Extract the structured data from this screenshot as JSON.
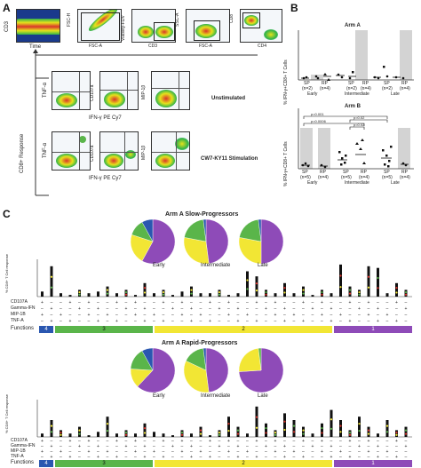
{
  "panels": {
    "a": "A",
    "b": "B",
    "c": "C"
  },
  "panelA": {
    "row1": {
      "p1": {
        "ylabel": "CD3",
        "xlabel": "Time"
      },
      "p2": {
        "ylabel": "FSC-H",
        "xlabel": "FSC-A"
      },
      "p3": {
        "ylabel": "Viability-FDV",
        "xlabel": "CD3"
      },
      "p4": {
        "ylabel": "SSC-A",
        "xlabel": "FSC-A"
      },
      "p5": {
        "ylabel": "CD8",
        "xlabel": "CD4"
      }
    },
    "response_label": "CD8+ Response",
    "unstim": {
      "label": "Unstimulated",
      "y1": "TNF-α",
      "y2": "CD107a",
      "y3": "MIP-1β",
      "xlabel": "IFN-γ PE Cy7"
    },
    "stim": {
      "label": "CW7-KY11 Stimulation",
      "y1": "TNF-α",
      "y2": "CD107a",
      "y3": "MIP-1β",
      "xlabel": "IFN-γ PE Cy7"
    }
  },
  "panelB": {
    "armA": {
      "title": "Arm A",
      "ylabel": "% IFN-γ+CD8+ T Cells",
      "sp": "SP",
      "rp": "RP",
      "n_early_sp": "(n=2)",
      "n_early_rp": "(n=4)",
      "n_int_sp": "(n=2)",
      "n_int_rp": "(n=4)",
      "n_late_sp": "(n=2)",
      "n_late_rp": "(n=4)",
      "groups": [
        "Early",
        "Intermediate",
        "Late"
      ]
    },
    "armB": {
      "title": "Arm B",
      "ylabel": "% IFN-γ+CD8+ T Cells",
      "sp": "SP",
      "rp": "RP",
      "n_early_sp": "(n=5)",
      "n_early_rp": "(n=4)",
      "n_int_sp": "(n=5)",
      "n_int_rp": "(n=4)",
      "n_late_sp": "(n=5)",
      "n_late_rp": "(n=4)",
      "groups": [
        "Early",
        "Intermediate",
        "Late"
      ],
      "pvals": [
        "p=0.001",
        "p=0.02",
        "p=0.0006",
        "p=0.02"
      ]
    }
  },
  "panelC": {
    "slow": {
      "title": "Arm A Slow-Progressors",
      "pies": [
        {
          "label": "Early",
          "slices": [
            {
              "c": "#8e4bb8",
              "v": 0.58
            },
            {
              "c": "#f2e634",
              "v": 0.22
            },
            {
              "c": "#5ab54a",
              "v": 0.12
            },
            {
              "c": "#2a57b0",
              "v": 0.08
            }
          ]
        },
        {
          "label": "Intermediate",
          "slices": [
            {
              "c": "#8e4bb8",
              "v": 0.48
            },
            {
              "c": "#f2e634",
              "v": 0.3
            },
            {
              "c": "#5ab54a",
              "v": 0.2
            },
            {
              "c": "#2a57b0",
              "v": 0.02
            }
          ]
        },
        {
          "label": "Late",
          "slices": [
            {
              "c": "#8e4bb8",
              "v": 0.5
            },
            {
              "c": "#f2e634",
              "v": 0.28
            },
            {
              "c": "#5ab54a",
              "v": 0.2
            },
            {
              "c": "#2a57b0",
              "v": 0.02
            }
          ]
        }
      ],
      "ylabel": "% CD8+ T Cell response"
    },
    "rapid": {
      "title": "Arm A Rapid-Progressors",
      "pies": [
        {
          "label": "Early",
          "slices": [
            {
              "c": "#8e4bb8",
              "v": 0.62
            },
            {
              "c": "#f2e634",
              "v": 0.14
            },
            {
              "c": "#5ab54a",
              "v": 0.16
            },
            {
              "c": "#2a57b0",
              "v": 0.08
            }
          ]
        },
        {
          "label": "Intermediate",
          "slices": [
            {
              "c": "#8e4bb8",
              "v": 0.48
            },
            {
              "c": "#f2e634",
              "v": 0.34
            },
            {
              "c": "#5ab54a",
              "v": 0.16
            },
            {
              "c": "#2a57b0",
              "v": 0.02
            }
          ]
        },
        {
          "label": "Late",
          "slices": [
            {
              "c": "#8e4bb8",
              "v": 0.74
            },
            {
              "c": "#f2e634",
              "v": 0.24
            },
            {
              "c": "#5ab54a",
              "v": 0.02
            }
          ]
        }
      ],
      "ylabel": "% CD8+ T Cell response"
    },
    "rows": [
      "CD107A",
      "Gamma-IFN",
      "MIP-1B",
      "TNF-A"
    ],
    "rows_rapid": [
      "CD107A",
      "Gamma-IFN",
      "MIP-1B",
      "TNF-A"
    ],
    "functions_label": "Functions",
    "strips": [
      {
        "label": "4",
        "color": "#2a57b0"
      },
      {
        "label": "3",
        "color": "#5ab54a"
      },
      {
        "label": "2",
        "color": "#f2e634"
      },
      {
        "label": "1",
        "color": "#8e4bb8"
      }
    ]
  }
}
